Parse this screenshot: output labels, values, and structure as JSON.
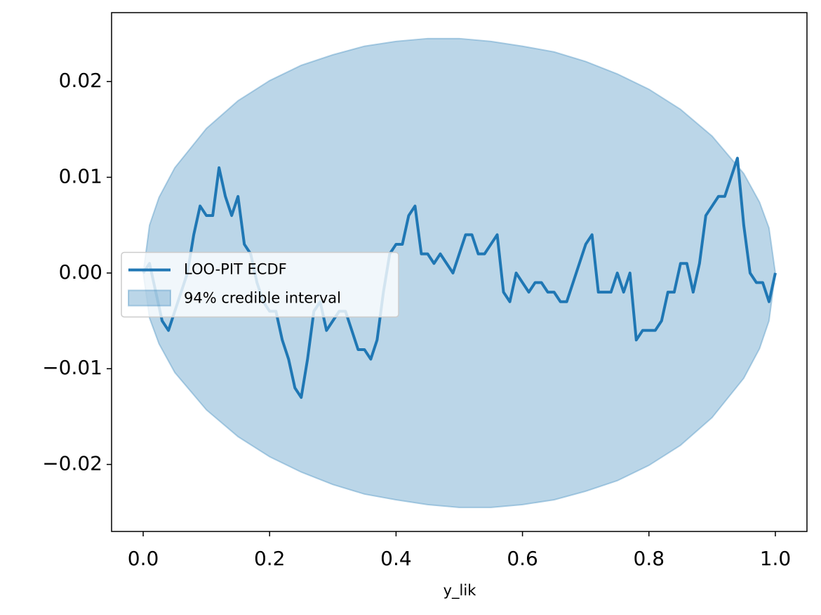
{
  "chart_data": {
    "type": "line",
    "xlabel": "y_lik",
    "xlim": [
      -0.05,
      1.05
    ],
    "ylim": [
      -0.027,
      0.0272
    ],
    "xticks": [
      {
        "value": 0,
        "label": "0.0"
      },
      0.2,
      0.4,
      0.6,
      0.8,
      {
        "value": 1,
        "label": "1.0"
      }
    ],
    "yticks": [
      {
        "value": -0.02,
        "label": "−0.02"
      },
      {
        "value": -0.01,
        "label": "−0.01"
      },
      {
        "value": 0,
        "label": "0.00"
      },
      0.01,
      0.02
    ],
    "legend": "center left",
    "series": [
      {
        "name": "LOO-PIT ECDF",
        "color": "#1f77b4",
        "x": [
          0,
          0.01,
          0.02,
          0.03,
          0.04,
          0.05,
          0.06,
          0.07,
          0.08,
          0.09,
          0.1,
          0.11,
          0.12,
          0.13,
          0.14,
          0.15,
          0.16,
          0.17,
          0.18,
          0.19,
          0.2,
          0.21,
          0.22,
          0.23,
          0.24,
          0.25,
          0.26,
          0.27,
          0.28,
          0.29,
          0.3,
          0.31,
          0.32,
          0.33,
          0.34,
          0.35,
          0.36,
          0.37,
          0.38,
          0.39,
          0.4,
          0.41,
          0.42,
          0.43,
          0.44,
          0.45,
          0.46,
          0.47,
          0.48,
          0.49,
          0.5,
          0.51,
          0.52,
          0.53,
          0.54,
          0.55,
          0.56,
          0.57,
          0.58,
          0.59,
          0.6,
          0.61,
          0.62,
          0.63,
          0.64,
          0.65,
          0.66,
          0.67,
          0.68,
          0.69,
          0.7,
          0.71,
          0.72,
          0.73,
          0.74,
          0.75,
          0.76,
          0.77,
          0.78,
          0.79,
          0.8,
          0.81,
          0.82,
          0.83,
          0.84,
          0.85,
          0.86,
          0.87,
          0.88,
          0.89,
          0.9,
          0.91,
          0.92,
          0.93,
          0.94,
          0.95,
          0.96,
          0.97,
          0.98,
          0.99,
          1
        ],
        "values": [
          0,
          0.001,
          -0.002,
          -0.005,
          -0.006,
          -0.004,
          -0.002,
          0,
          0.004,
          0.007,
          0.006,
          0.006,
          0.011,
          0.008,
          0.006,
          0.008,
          0.003,
          0.002,
          -0.001,
          -0.003,
          -0.004,
          -0.004,
          -0.007,
          -0.009,
          -0.012,
          -0.013,
          -0.009,
          -0.004,
          -0.003,
          -0.006,
          -0.005,
          -0.004,
          -0.004,
          -0.006,
          -0.008,
          -0.008,
          -0.009,
          -0.007,
          -0.002,
          0.002,
          0.003,
          0.003,
          0.006,
          0.007,
          0.002,
          0.002,
          0.001,
          0.002,
          0.001,
          0,
          0.002,
          0.004,
          0.004,
          0.002,
          0.002,
          0.003,
          0.004,
          -0.002,
          -0.003,
          0,
          -0.001,
          -0.002,
          -0.001,
          -0.001,
          -0.002,
          -0.002,
          -0.003,
          -0.003,
          -0.001,
          0.001,
          0.003,
          0.004,
          -0.002,
          -0.002,
          -0.002,
          0,
          -0.002,
          0,
          -0.007,
          -0.006,
          -0.006,
          -0.006,
          -0.005,
          -0.002,
          -0.002,
          0.001,
          0.001,
          -0.002,
          0.001,
          0.006,
          0.007,
          0.008,
          0.008,
          0.01,
          0.012,
          0.005,
          0,
          -0.001,
          -0.001,
          -0.003,
          0
        ]
      }
    ],
    "band": {
      "name": "94% credible interval",
      "color": "#1f77b4",
      "x": [
        0,
        0.01,
        0.025,
        0.05,
        0.1,
        0.15,
        0.2,
        0.25,
        0.3,
        0.35,
        0.4,
        0.45,
        0.5,
        0.55,
        0.6,
        0.65,
        0.7,
        0.75,
        0.8,
        0.85,
        0.9,
        0.95,
        0.975,
        0.99,
        1
      ],
      "upper": [
        0,
        0.005,
        0.0079,
        0.011,
        0.0151,
        0.018,
        0.0201,
        0.0217,
        0.0228,
        0.0237,
        0.0242,
        0.0245,
        0.0245,
        0.0242,
        0.0237,
        0.0231,
        0.0221,
        0.0208,
        0.0192,
        0.0171,
        0.0143,
        0.0104,
        0.0074,
        0.0047,
        0
      ],
      "lower": [
        0,
        -0.0047,
        -0.0074,
        -0.0104,
        -0.0143,
        -0.0171,
        -0.0192,
        -0.0208,
        -0.0221,
        -0.0231,
        -0.0237,
        -0.0242,
        -0.0245,
        -0.0245,
        -0.0242,
        -0.0237,
        -0.0228,
        -0.0217,
        -0.0201,
        -0.018,
        -0.0151,
        -0.011,
        -0.0079,
        -0.005,
        0
      ]
    }
  }
}
